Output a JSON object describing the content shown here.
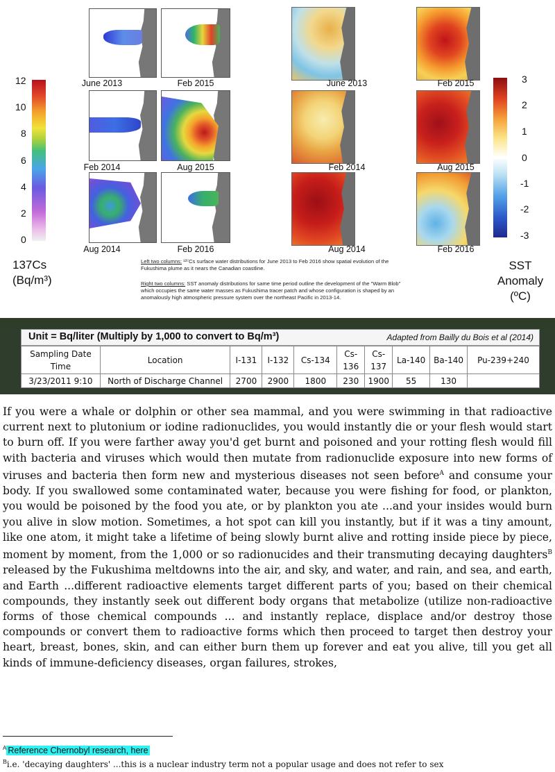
{
  "figure": {
    "cs_scale_ticks": [
      "12",
      "10",
      "8",
      "6",
      "4",
      "2",
      "0"
    ],
    "cs_label_line1": "137Cs",
    "cs_label_line2": "(Bq/m³)",
    "sst_scale_ticks": [
      "3",
      "2",
      "1",
      "0",
      "-1",
      "-2",
      "-3"
    ],
    "sst_label_line1": "SST",
    "sst_label_line2": "Anomaly",
    "sst_label_line3": "(ºC)",
    "cs_panels": [
      "June 2013",
      "Feb 2015",
      "Feb 2014",
      "Aug 2015",
      "Aug 2014",
      "Feb 2016"
    ],
    "sst_panels": [
      "June 2013",
      "Feb 2015",
      "Feb 2014",
      "Aug 2015",
      "Aug 2014",
      "Feb 2016"
    ],
    "note_left_heading": "Left two columns:",
    "note_left_body": " ¹³⁷Cs surface water distributions for June 2013 to Feb 2016 show spatial evolution of the Fukushima plume as it nears the Canadian coastline.",
    "note_right_heading": "Right two columns:",
    "note_right_body": " SST anomaly distributions for same time period outline the development of the \"Warm Blob\" which occupies the same water masses as Fukushima tracer patch and whose configuration is shaped by an anomalously high atmospheric pressure system over the northeast Pacific in 2013-14."
  },
  "table": {
    "unit_note": "Unit = Bq/liter (Multiply by 1,000 to convert to Bq/m³)",
    "source": "Adapted from Bailly du Bois et al (2014)",
    "headers": [
      "Sampling Date Time",
      "Location",
      "I-131",
      "I-132",
      "Cs-134",
      "Cs-136",
      "Cs-137",
      "La-140",
      "Ba-140",
      "Pu-239+240"
    ],
    "rows": [
      [
        "3/23/2011 9:10",
        "North of Discharge Channel",
        "2700",
        "2900",
        "1800",
        "230",
        "1900",
        "55",
        "130",
        ""
      ]
    ]
  },
  "article": {
    "p1": "If you were a whale or dolphin or other sea mammal, and you were swimming in that radioactive current next to plutonium or iodine radionuclides, you would instantly die or your flesh would start to burn off. If you were farther away you'd get burnt and poisoned and your rotting flesh would fill with bacteria and viruses which would then mutate from radionuclide exposure into new forms of viruses and bacteria then form new and mysterious diseases not seen before",
    "sup_a": "A",
    "p2": " and consume your body. If you swallowed some contaminated water, because you were fishing for food, or plankton, you would be poisoned by the food you ate, or by plankton you ate ...and your insides would burn you alive in slow motion. Sometimes, a hot spot can kill you instantly, but if it was a tiny amount, like one atom, it might take a lifetime of being slowly burnt alive and rotting inside piece by piece, moment by moment, from the 1,000 or so radionucides and their transmuting decaying daughters",
    "sup_b": "B",
    "p3": " released by the Fukushima meltdowns into the air, and sky, and water, and rain, and sea, and earth, and Earth ...different radioactive elements target different parts of you; based on their chemical compounds, they instantly seek out different body organs that metabolize (utilize non-radioactive forms of those chemical compounds ... and instantly replace, displace and/or destroy those compounds or convert them to radioactive forms which then proceed to target then destroy your heart, breast, bones, skin, and can either burn them up forever and eat you alive, till you get all kinds of immune-deficiency diseases, organ failures, strokes,"
  },
  "footnotes": {
    "a_marker": "A",
    "a_text": "Reference Chernobyl research, here",
    "b_marker": "B",
    "b_text": "i.e. 'decaying daughters' ...this is a nuclear industry term not a popular usage and does not refer to sex"
  },
  "colors": {
    "highlight": "#31f2f3",
    "table_banner_bg": "#2f3d2d"
  }
}
